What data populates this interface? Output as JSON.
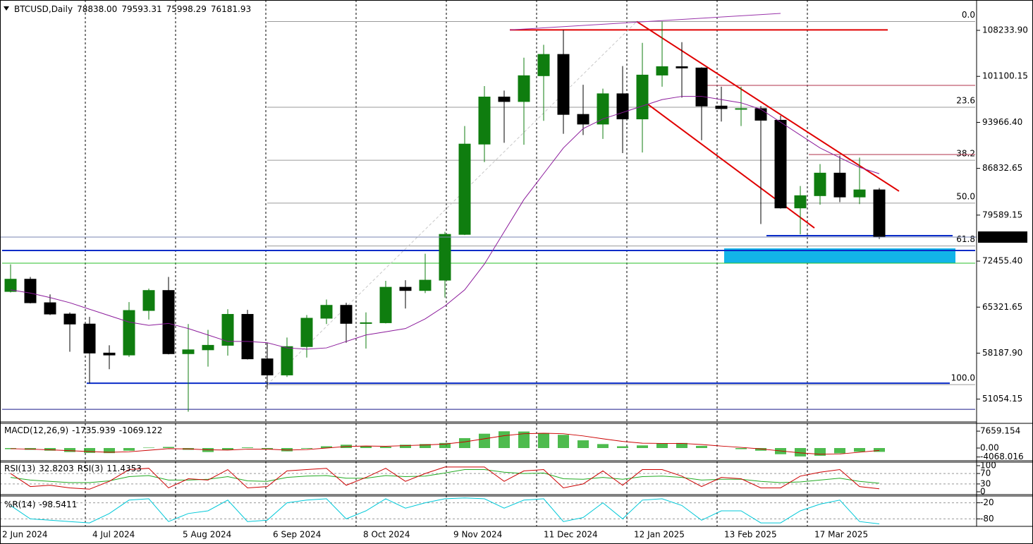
{
  "chart_data": {
    "type": "candlestick",
    "title": "BTCUSD,Daily",
    "last_bar": [
      {
        "value": 78838,
        "label": "78838.00"
      },
      {
        "value": 79593.31,
        "label": "79593.31"
      },
      {
        "value": 75998.29,
        "label": "75998.29"
      },
      {
        "value": 76181.93,
        "label": "76181.93"
      }
    ],
    "x": [
      "2 Jun 2024",
      "9 Jun 2024",
      "16 Jun 2024",
      "23 Jun 2024",
      "30 Jun 2024",
      "7 Jul 2024",
      "14 Jul 2024",
      "21 Jul 2024",
      "28 Jul 2024",
      "4 Aug 2024",
      "11 Aug 2024",
      "18 Aug 2024",
      "25 Aug 2024",
      "1 Sep 2024",
      "8 Sep 2024",
      "15 Sep 2024",
      "22 Sep 2024",
      "29 Sep 2024",
      "6 Oct 2024",
      "13 Oct 2024",
      "20 Oct 2024",
      "27 Oct 2024",
      "3 Nov 2024",
      "10 Nov 2024",
      "17 Nov 2024",
      "24 Nov 2024",
      "1 Dec 2024",
      "8 Dec 2024",
      "15 Dec 2024",
      "22 Dec 2024",
      "29 Dec 2024",
      "5 Jan 2025",
      "12 Jan 2025",
      "19 Jan 2025",
      "26 Jan 2025",
      "2 Feb 2025",
      "9 Feb 2025",
      "16 Feb 2025",
      "23 Feb 2025",
      "2 Mar 2025",
      "9 Mar 2025",
      "16 Mar 2025",
      "23 Mar 2025",
      "30 Mar 2025",
      "6 Apr 2025"
    ],
    "open": [
      67750,
      69650,
      66000,
      64250,
      62700,
      58200,
      57900,
      64800,
      67900,
      58100,
      58700,
      59400,
      64200,
      57300,
      54800,
      59200,
      63600,
      65600,
      62800,
      62900,
      68400,
      67900,
      69500,
      76600,
      90600,
      97900,
      97200,
      101200,
      104500,
      95200,
      93700,
      98400,
      94500,
      101300,
      102600,
      102400,
      96500,
      96100,
      96100,
      94300,
      80700,
      82600,
      86100,
      82400,
      83500
    ],
    "high": [
      71950,
      70000,
      67300,
      64500,
      63800,
      59400,
      66100,
      68200,
      70000,
      62700,
      61800,
      65000,
      64900,
      59800,
      60600,
      64100,
      66500,
      66000,
      64500,
      69400,
      69500,
      73600,
      77000,
      93400,
      99600,
      98900,
      104000,
      106000,
      108300,
      99800,
      99200,
      102700,
      106300,
      109600,
      106400,
      102500,
      99500,
      99500,
      96500,
      95000,
      84100,
      87500,
      88800,
      88500,
      83800
    ],
    "low": [
      67600,
      65900,
      64100,
      58400,
      53500,
      55700,
      57600,
      63400,
      58000,
      49100,
      56100,
      57800,
      57200,
      52600,
      54500,
      57500,
      62700,
      59800,
      58900,
      62800,
      65100,
      67500,
      66800,
      76500,
      87800,
      90800,
      90500,
      94200,
      92200,
      92000,
      91400,
      89200,
      89300,
      99500,
      97800,
      91200,
      94100,
      93400,
      78200,
      80600,
      76600,
      81200,
      81600,
      81300,
      75900
    ],
    "close": [
      69650,
      66000,
      64250,
      62700,
      58200,
      57900,
      64800,
      67900,
      58100,
      58700,
      59400,
      64200,
      57300,
      54800,
      59200,
      63600,
      65600,
      62800,
      62900,
      68400,
      67900,
      69500,
      76600,
      90600,
      97900,
      97200,
      101200,
      104500,
      95200,
      93700,
      98400,
      94500,
      101300,
      102600,
      102400,
      96500,
      96100,
      96100,
      94300,
      80700,
      82600,
      86100,
      82400,
      83500,
      76200
    ],
    "ma": [
      68000,
      67500,
      66800,
      66000,
      65000,
      64000,
      63000,
      62500,
      62800,
      62000,
      61000,
      60000,
      60000,
      59800,
      59000,
      58800,
      59000,
      60000,
      61000,
      61500,
      62000,
      63500,
      65500,
      68000,
      72000,
      77000,
      82000,
      86000,
      90000,
      93000,
      94500,
      95500,
      96500,
      97500,
      98000,
      98000,
      97500,
      97000,
      96000,
      94000,
      92000,
      90000,
      88500,
      87000,
      86000
    ],
    "colors": {
      "up": "#0f7d0f",
      "down": "#000000",
      "ma": "#8b1a9b",
      "price_line": "#7a86b0"
    },
    "ylim": [
      47520,
      112940
    ],
    "yticks": [
      {
        "value": 108233.9,
        "label": "108233.90"
      },
      {
        "value": 101100.15,
        "label": "101100.15"
      },
      {
        "value": 93966.4,
        "label": "93966.40"
      },
      {
        "value": 86832.65,
        "label": "86832.65"
      },
      {
        "value": 79589.15,
        "label": "79589.15"
      },
      {
        "value": 72455.4,
        "label": "72455.40"
      },
      {
        "value": 65321.65,
        "label": "65321.65"
      },
      {
        "value": 58187.9,
        "label": "58187.90"
      },
      {
        "value": 51054.15,
        "label": "51054.15"
      }
    ],
    "xticks": [
      "2 Jun 2024",
      "4 Jul 2024",
      "5 Aug 2024",
      "6 Sep 2024",
      "8 Oct 2024",
      "9 Nov 2024",
      "11 Dec 2024",
      "12 Jan 2025",
      "13 Feb 2025",
      "17 Mar 2025"
    ],
    "fib": {
      "high": 109600,
      "low": 53300,
      "from": "4 Sep 2024",
      "to": "13 May 2025",
      "color": "#9a9a9a",
      "levels": [
        {
          "value": 0,
          "label": "0.0"
        },
        23.6,
        38.2,
        {
          "value": 50,
          "label": "50.0"
        },
        61.8,
        {
          "value": 100,
          "label": "100.0"
        }
      ]
    },
    "levels": [
      {
        "price": 108300,
        "from": "29 Nov 2024",
        "to": "12 Apr 2025",
        "color": "#e00000",
        "style": "thick"
      },
      {
        "price": 74100,
        "from": "2 Jun 2024",
        "to": "13 May 2025",
        "color": "#0a2cc8",
        "style": "thick"
      },
      {
        "price": 72130,
        "from": "2 Jun 2024",
        "to": "13 May 2025",
        "color": "#2bbf2b",
        "style": "thin"
      },
      {
        "price": 53530,
        "from": "2 Jul 2024",
        "to": "4 May 2025",
        "color": "#0a2cc8",
        "style": "thick"
      },
      {
        "price": 49480,
        "from": "2 Jun 2024",
        "to": "13 May 2025",
        "color": "#1a1a8a",
        "style": "thin"
      },
      {
        "price": 76400,
        "from": "28 Feb 2025",
        "to": "5 May 2025",
        "color": "#0a2cc8",
        "style": "thick"
      },
      {
        "price": 99700,
        "from": "7 Feb 2025",
        "to": "13 May 2025",
        "color": "#b0304a",
        "style": "thin"
      },
      {
        "price": 88980,
        "from": "15 Mar 2025",
        "to": "13 May 2025",
        "color": "#b0304a",
        "style": "thin"
      }
    ],
    "trendlines": [
      {
        "from": "13 Jan 2025",
        "from_price": 109600,
        "to": "16 Apr 2025",
        "to_price": 83300,
        "color": "#e00000",
        "style": "thick"
      },
      {
        "from": "13 Jan 2025",
        "from_price": 98060,
        "to": "17 Mar 2025",
        "to_price": 77600,
        "color": "#e00000",
        "style": "thick"
      },
      {
        "from": "29 Nov 2024",
        "from_price": 108300,
        "to": "5 Mar 2025",
        "to_price": 110860,
        "color": "#9933aa",
        "style": "thin"
      },
      {
        "from": "4 Sep 2024",
        "from_price": 53300,
        "to": "13 Jan 2025",
        "to_price": 109600,
        "color": "#c8c8c8",
        "style": "dashed"
      }
    ],
    "zone": {
      "from": "13 Feb 2025",
      "to": "6 May 2025",
      "top": 74430,
      "bottom": 72130,
      "color": "#12b4e8"
    },
    "indicators": [
      {
        "type": "macd",
        "title": "MACD(12,26,9)",
        "main": [
          -500,
          -800,
          -1200,
          -1800,
          -2200,
          -2300,
          -1200,
          200,
          500,
          -800,
          -1800,
          -800,
          300,
          -600,
          -1500,
          -300,
          800,
          1500,
          900,
          600,
          1500,
          1800,
          2300,
          4500,
          6500,
          7600,
          7500,
          6800,
          6000,
          3500,
          1800,
          800,
          1200,
          2200,
          2300,
          1000,
          0,
          -500,
          -1200,
          -2800,
          -3800,
          -3500,
          -2400,
          -1700,
          -1735.939
        ],
        "signal": [
          -300,
          -500,
          -800,
          -1200,
          -1600,
          -1900,
          -1700,
          -1000,
          -300,
          -400,
          -800,
          -900,
          -500,
          -500,
          -900,
          -700,
          0,
          700,
          900,
          800,
          1100,
          1400,
          1800,
          2800,
          4200,
          5600,
          6500,
          6700,
          6500,
          5500,
          4200,
          3000,
          2200,
          2100,
          2100,
          1600,
          900,
          300,
          -400,
          -1300,
          -2200,
          -2800,
          -2700,
          -1900,
          -1069.122
        ],
        "colors": {
          "main": "#22aa22",
          "signal": "#cc0000"
        },
        "ylim": [
          -5440,
          11200
        ],
        "yticks": [
          7659.154,
          {
            "value": 0,
            "label": "0.00"
          },
          -4068.016
        ]
      },
      {
        "type": "oscillator",
        "series": [
          {
            "name": "RSI(13)",
            "color": "#22aa22",
            "values": [
              55,
              45,
              40,
              35,
              35,
              42,
              58,
              62,
              45,
              45,
              48,
              58,
              42,
              40,
              55,
              60,
              62,
              52,
              52,
              62,
              58,
              60,
              72,
              85,
              85,
              75,
              70,
              72,
              50,
              48,
              55,
              48,
              58,
              60,
              55,
              45,
              48,
              48,
              40,
              35,
              38,
              45,
              52,
              40,
              32.8203
            ]
          },
          {
            "name": "RSI(3)",
            "color": "#cc0000",
            "values": [
              70,
              20,
              25,
              15,
              10,
              40,
              85,
              90,
              15,
              50,
              45,
              85,
              15,
              20,
              80,
              85,
              90,
              25,
              55,
              90,
              40,
              70,
              95,
              95,
              95,
              40,
              80,
              85,
              15,
              30,
              80,
              25,
              85,
              85,
              60,
              20,
              55,
              50,
              15,
              15,
              60,
              75,
              85,
              20,
              11.4353
            ]
          }
        ],
        "ylim": [
          0,
          100
        ],
        "yticks": [
          100,
          70,
          30,
          0
        ],
        "levels": [
          70,
          30
        ]
      },
      {
        "type": "oscillator",
        "series": [
          {
            "name": "%R(14)",
            "color": "#00c8d8",
            "values": [
              -30,
              -80,
              -85,
              -90,
              -95,
              -60,
              -10,
              -5,
              -90,
              -60,
              -50,
              -10,
              -90,
              -85,
              -20,
              -10,
              -5,
              -80,
              -50,
              -5,
              -40,
              -20,
              -5,
              -2,
              -5,
              -40,
              -10,
              -5,
              -90,
              -75,
              -20,
              -80,
              -10,
              -5,
              -30,
              -85,
              -50,
              -50,
              -95,
              -95,
              -50,
              -25,
              -10,
              -90,
              -98.5411
            ]
          }
        ],
        "ylim": [
          -100,
          0
        ],
        "yticks": [
          -20,
          -80
        ],
        "levels": [
          -20,
          -80
        ]
      }
    ]
  }
}
